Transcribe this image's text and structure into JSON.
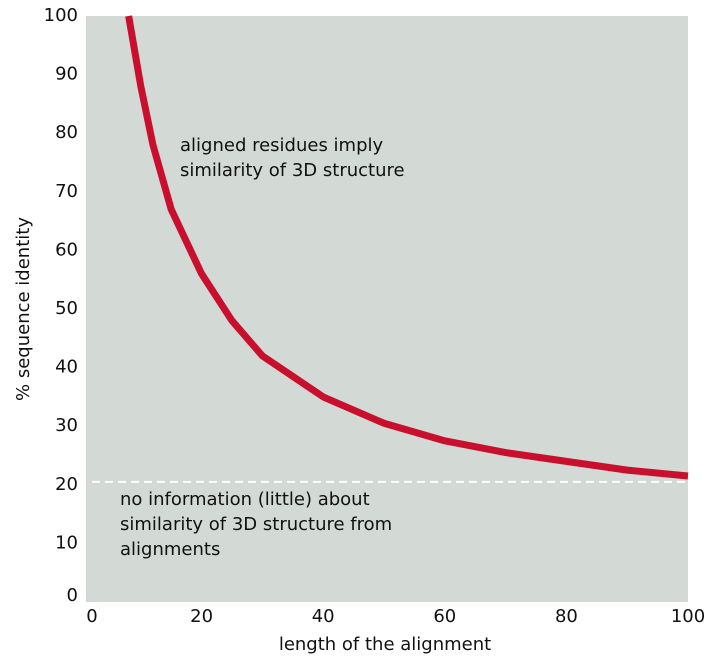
{
  "chart_data": {
    "type": "line",
    "xlabel": "length of the alignment",
    "ylabel": "% sequence identity",
    "x": [
      8,
      10,
      12,
      15,
      20,
      25,
      30,
      40,
      50,
      60,
      70,
      80,
      90,
      100
    ],
    "values": [
      100,
      88,
      78,
      67,
      56,
      48,
      42,
      35,
      30.5,
      27.5,
      25.5,
      24,
      22.5,
      21.5
    ],
    "color": "#c8102e",
    "xlim": [
      0,
      100
    ],
    "ylim": [
      0,
      100
    ],
    "xticks": [
      0,
      20,
      40,
      60,
      80,
      100
    ],
    "yticks": [
      0,
      10,
      20,
      30,
      40,
      50,
      60,
      70,
      80,
      90,
      100
    ],
    "reference_line": 20.5,
    "annotations": [
      [
        "aligned residues imply",
        "similarity of 3D structure"
      ],
      [
        "no information (little) about",
        "similarity of 3D structure from",
        "alignments"
      ]
    ]
  }
}
